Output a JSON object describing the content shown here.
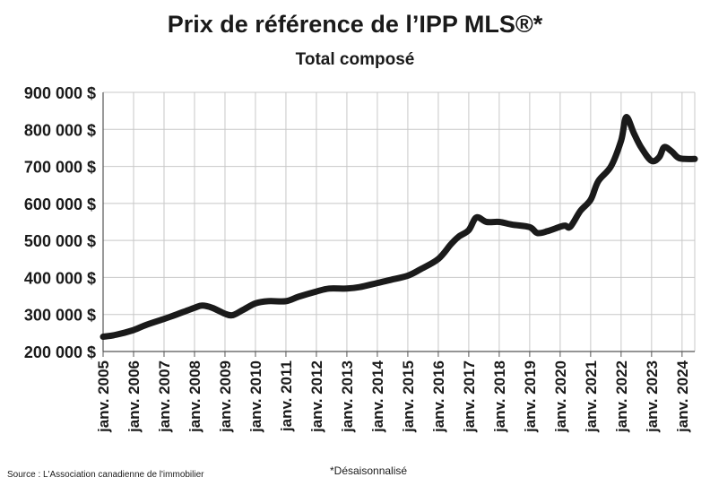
{
  "chart_data": {
    "type": "line",
    "title": "Prix de référence de l’IPP MLS®*",
    "subtitle": "Total composé",
    "xlabel": "",
    "ylabel": "",
    "ylim": [
      200000,
      900000
    ],
    "y_ticks": [
      200000,
      300000,
      400000,
      500000,
      600000,
      700000,
      800000,
      900000
    ],
    "y_tick_labels": [
      "200 000 $",
      "300 000 $",
      "400 000 $",
      "500 000 $",
      "600 000 $",
      "700 000 $",
      "800 000 $",
      "900 000 $"
    ],
    "x_tick_labels": [
      "janv. 2005",
      "janv. 2006",
      "janv. 2007",
      "janv. 2008",
      "janv. 2009",
      "janv. 2010",
      "janv. 2011",
      "janv. 2012",
      "janv. 2013",
      "janv. 2014",
      "janv. 2015",
      "janv. 2016",
      "janv. 2017",
      "janv. 2018",
      "janv. 2019",
      "janv. 2020",
      "janv. 2021",
      "janv. 2022",
      "janv. 2023",
      "janv. 2024"
    ],
    "xlim": [
      "2005-01",
      "2024-06"
    ],
    "grid": true,
    "legend": "none",
    "series": [
      {
        "color": "#1a1a1a",
        "points": [
          [
            "2005-01",
            240000
          ],
          [
            "2005-06",
            245000
          ],
          [
            "2006-01",
            258000
          ],
          [
            "2006-06",
            272000
          ],
          [
            "2007-01",
            288000
          ],
          [
            "2007-06",
            300000
          ],
          [
            "2008-01",
            318000
          ],
          [
            "2008-04",
            324000
          ],
          [
            "2008-08",
            318000
          ],
          [
            "2009-01",
            302000
          ],
          [
            "2009-04",
            298000
          ],
          [
            "2009-08",
            312000
          ],
          [
            "2010-01",
            330000
          ],
          [
            "2010-06",
            336000
          ],
          [
            "2011-01",
            336000
          ],
          [
            "2011-06",
            348000
          ],
          [
            "2012-01",
            362000
          ],
          [
            "2012-06",
            370000
          ],
          [
            "2013-01",
            370000
          ],
          [
            "2013-06",
            374000
          ],
          [
            "2014-01",
            385000
          ],
          [
            "2014-06",
            393000
          ],
          [
            "2015-01",
            405000
          ],
          [
            "2015-06",
            422000
          ],
          [
            "2016-01",
            450000
          ],
          [
            "2016-06",
            490000
          ],
          [
            "2016-09",
            510000
          ],
          [
            "2017-01",
            528000
          ],
          [
            "2017-04",
            562000
          ],
          [
            "2017-08",
            550000
          ],
          [
            "2018-01",
            550000
          ],
          [
            "2018-06",
            543000
          ],
          [
            "2019-01",
            536000
          ],
          [
            "2019-04",
            520000
          ],
          [
            "2019-08",
            525000
          ],
          [
            "2020-01",
            537000
          ],
          [
            "2020-03",
            540000
          ],
          [
            "2020-05",
            537000
          ],
          [
            "2020-09",
            580000
          ],
          [
            "2021-01",
            610000
          ],
          [
            "2021-04",
            660000
          ],
          [
            "2021-09",
            700000
          ],
          [
            "2022-01",
            770000
          ],
          [
            "2022-03",
            833000
          ],
          [
            "2022-06",
            790000
          ],
          [
            "2022-09",
            750000
          ],
          [
            "2023-01",
            715000
          ],
          [
            "2023-04",
            725000
          ],
          [
            "2023-06",
            752000
          ],
          [
            "2023-09",
            740000
          ],
          [
            "2023-12",
            722000
          ],
          [
            "2024-06",
            720000
          ]
        ]
      }
    ]
  },
  "footer": {
    "source": "Source : L'Association canadienne de l'immobilier",
    "note": "*Désaisonnalisé"
  }
}
